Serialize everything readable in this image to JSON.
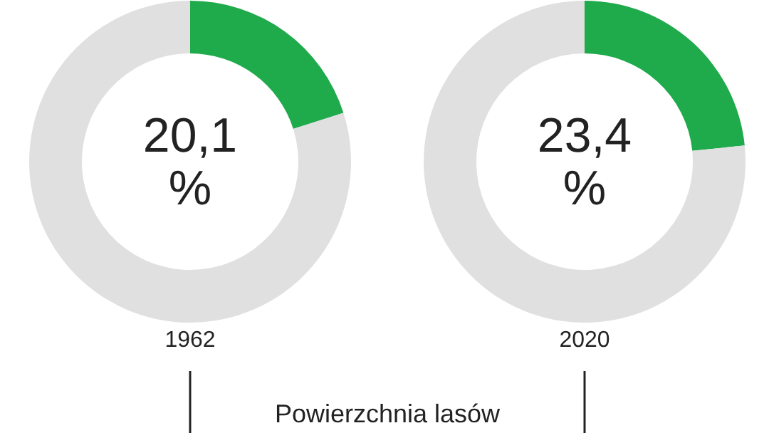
{
  "chart_data": [
    {
      "type": "donut",
      "categories": [
        null,
        null
      ],
      "values": [
        20.1,
        79.9
      ],
      "colors": [
        "#1faa4b",
        "#e0e0e0"
      ],
      "xlabel": "1962",
      "annotations": [
        "20,1 %",
        "Powierzchnia lasów"
      ]
    },
    {
      "type": "donut",
      "categories": [
        null,
        null
      ],
      "values": [
        23.4,
        76.6
      ],
      "colors": [
        "#1faa4b",
        "#e0e0e0"
      ],
      "xlabel": "2020",
      "annotations": [
        "23,4 %"
      ]
    }
  ]
}
